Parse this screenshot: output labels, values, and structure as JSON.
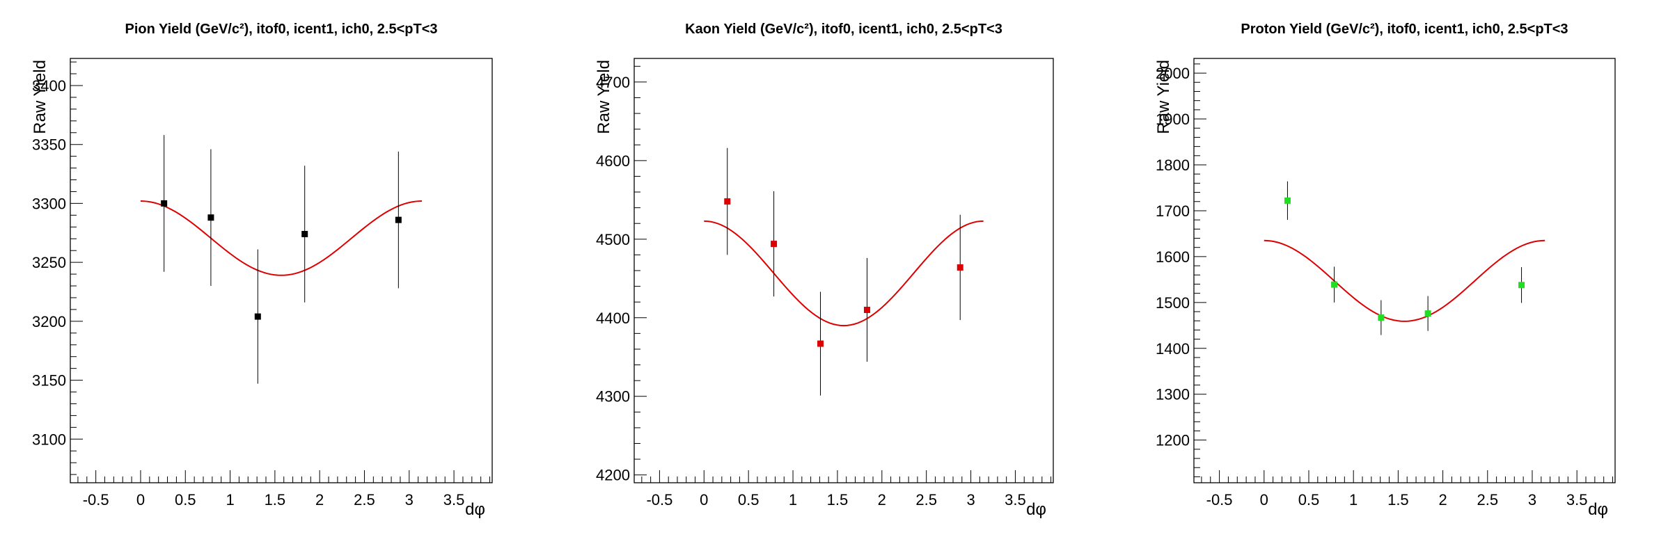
{
  "chart_data": [
    {
      "type": "scatter",
      "title": "Pion Yield (GeV/c²), itof0, icent1, ich0, 2.5<pT<3",
      "xlabel": "dφ",
      "ylabel": "Raw Yield",
      "xlim": [
        -0.785,
        3.927
      ],
      "ylim": [
        3063,
        3423
      ],
      "xticks": [
        -0.5,
        0,
        0.5,
        1,
        1.5,
        2,
        2.5,
        3,
        3.5
      ],
      "yticks": [
        3100,
        3150,
        3200,
        3250,
        3300,
        3350,
        3400
      ],
      "grid": false,
      "marker_color": "#000000",
      "fit_color": "#dd0000",
      "points": [
        {
          "x": 0.262,
          "y": 3300,
          "err": 58
        },
        {
          "x": 0.785,
          "y": 3288,
          "err": 58
        },
        {
          "x": 1.309,
          "y": 3204,
          "err": 57
        },
        {
          "x": 1.833,
          "y": 3274,
          "err": 58
        },
        {
          "x": 2.88,
          "y": 3286,
          "err": 58
        }
      ],
      "fit": {
        "func": "a + b*cos(2x)",
        "a": 3270.5,
        "b": 31.5,
        "x_range": [
          0.0,
          3.1416
        ]
      }
    },
    {
      "type": "scatter",
      "title": "Kaon Yield (GeV/c²), itof0, icent1, ich0, 2.5<pT<3",
      "xlabel": "dφ",
      "ylabel": "Raw Yield",
      "xlim": [
        -0.785,
        3.927
      ],
      "ylim": [
        4190,
        4730
      ],
      "xticks": [
        -0.5,
        0,
        0.5,
        1,
        1.5,
        2,
        2.5,
        3,
        3.5
      ],
      "yticks": [
        4200,
        4300,
        4400,
        4500,
        4600,
        4700
      ],
      "grid": false,
      "marker_color": "#dd0000",
      "fit_color": "#dd0000",
      "points": [
        {
          "x": 0.262,
          "y": 4548,
          "err": 68
        },
        {
          "x": 0.785,
          "y": 4494,
          "err": 67
        },
        {
          "x": 1.309,
          "y": 4367,
          "err": 66
        },
        {
          "x": 1.833,
          "y": 4410,
          "err": 66
        },
        {
          "x": 2.88,
          "y": 4464,
          "err": 67
        }
      ],
      "fit": {
        "func": "a + b*cos(2x)",
        "a": 4456.5,
        "b": 66.5,
        "x_range": [
          0.0,
          3.1416
        ]
      }
    },
    {
      "type": "scatter",
      "title": "Proton Yield (GeV/c²), itof0, icent1, ich0, 2.5<pT<3",
      "xlabel": "dφ",
      "ylabel": "Raw Yield",
      "xlim": [
        -0.785,
        3.927
      ],
      "ylim": [
        1107,
        2032
      ],
      "xticks": [
        -0.5,
        0,
        0.5,
        1,
        1.5,
        2,
        2.5,
        3,
        3.5
      ],
      "yticks": [
        1200,
        1300,
        1400,
        1500,
        1600,
        1700,
        1800,
        1900,
        2000
      ],
      "grid": false,
      "marker_color": "#22dd22",
      "fit_color": "#dd0000",
      "points": [
        {
          "x": 0.262,
          "y": 1722,
          "err": 42
        },
        {
          "x": 0.785,
          "y": 1539,
          "err": 39
        },
        {
          "x": 1.309,
          "y": 1467,
          "err": 38
        },
        {
          "x": 1.833,
          "y": 1476,
          "err": 38
        },
        {
          "x": 2.88,
          "y": 1538,
          "err": 39
        }
      ],
      "fit": {
        "func": "a + b*cos(2x)",
        "a": 1547.0,
        "b": 88.0,
        "x_range": [
          0.0,
          3.1416
        ]
      }
    }
  ]
}
